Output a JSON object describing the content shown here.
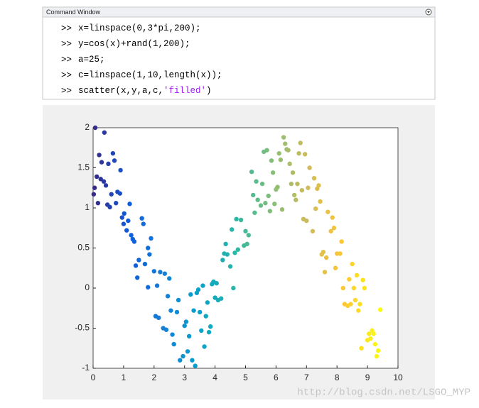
{
  "window": {
    "title": "Command Window",
    "prompt": ">>",
    "lines": [
      [
        "x=linspace(0,3*pi,200);"
      ],
      [
        "y=cos(x)+rand(1,200);"
      ],
      [
        "a=25;"
      ],
      [
        "c=linspace(1,10,length(x));"
      ],
      [
        "scatter(x,y,a,c,",
        "'filled'",
        ")"
      ]
    ]
  },
  "chart_data": {
    "type": "scatter",
    "x": [
      0.02,
      0.05,
      0.07,
      0.12,
      0.16,
      0.2,
      0.25,
      0.28,
      0.35,
      0.37,
      0.42,
      0.47,
      0.5,
      0.55,
      0.6,
      0.65,
      0.7,
      0.75,
      0.8,
      0.88,
      0.9,
      0.95,
      1.0,
      1.02,
      1.1,
      1.15,
      1.2,
      1.25,
      1.3,
      1.35,
      1.4,
      1.45,
      1.5,
      1.6,
      1.65,
      1.7,
      1.8,
      1.8,
      1.85,
      1.9,
      2.0,
      2.05,
      2.1,
      2.15,
      2.2,
      2.3,
      2.35,
      2.4,
      2.45,
      2.5,
      2.55,
      2.6,
      2.65,
      2.75,
      2.8,
      2.85,
      2.95,
      3.0,
      3.05,
      3.1,
      3.15,
      3.2,
      3.25,
      3.3,
      3.35,
      3.4,
      3.45,
      3.5,
      3.55,
      3.6,
      3.65,
      3.7,
      3.75,
      3.8,
      3.85,
      3.9,
      3.95,
      4.0,
      4.05,
      4.1,
      4.2,
      4.25,
      4.3,
      4.35,
      4.4,
      4.5,
      4.55,
      4.6,
      4.65,
      4.7,
      4.75,
      4.85,
      4.95,
      5.0,
      5.05,
      5.1,
      5.2,
      5.25,
      5.3,
      5.35,
      5.4,
      5.5,
      5.55,
      5.6,
      5.65,
      5.7,
      5.75,
      5.8,
      5.85,
      5.9,
      5.95,
      6.0,
      6.05,
      6.1,
      6.15,
      6.2,
      6.25,
      6.3,
      6.35,
      6.4,
      6.45,
      6.5,
      6.55,
      6.6,
      6.65,
      6.7,
      6.75,
      6.8,
      6.85,
      6.9,
      6.95,
      7.0,
      7.05,
      7.1,
      7.2,
      7.25,
      7.3,
      7.35,
      7.4,
      7.45,
      7.5,
      7.55,
      7.6,
      7.65,
      7.7,
      7.8,
      7.85,
      7.9,
      7.95,
      8.0,
      8.1,
      8.15,
      8.2,
      8.25,
      8.35,
      8.4,
      8.45,
      8.5,
      8.55,
      8.6,
      8.65,
      8.7,
      8.75,
      8.8,
      8.85,
      8.9,
      9.0,
      9.05,
      9.1,
      9.15,
      9.2,
      9.25,
      9.3,
      9.35,
      9.42
    ],
    "y": [
      1.17,
      1.25,
      2.0,
      1.39,
      1.06,
      1.66,
      1.36,
      1.57,
      1.33,
      1.94,
      1.28,
      1.04,
      1.55,
      1.01,
      1.17,
      1.68,
      1.59,
      1.06,
      1.2,
      1.18,
      1.47,
      0.88,
      0.8,
      0.93,
      0.72,
      0.84,
      1.05,
      0.66,
      0.61,
      0.58,
      0.28,
      0.13,
      0.35,
      0.87,
      0.8,
      0.3,
      0.5,
      0.01,
      0.42,
      0.62,
      0.21,
      -0.35,
      0.03,
      -0.37,
      0.2,
      -0.5,
      0.18,
      -0.52,
      -0.1,
      0.12,
      -0.28,
      -0.58,
      -0.7,
      -0.3,
      -0.15,
      -0.9,
      -0.85,
      -0.47,
      -0.42,
      -0.79,
      -0.6,
      -0.08,
      -0.9,
      -0.28,
      -0.97,
      -0.06,
      -0.02,
      -0.3,
      -0.53,
      0.03,
      -0.73,
      -0.35,
      -0.18,
      -0.55,
      -0.48,
      0.05,
      0.08,
      -0.12,
      0.06,
      -0.15,
      -0.13,
      0.35,
      0.43,
      0.55,
      0.42,
      0.27,
      0.73,
      0.0,
      0.44,
      0.86,
      0.48,
      0.85,
      0.53,
      0.71,
      0.55,
      0.66,
      1.45,
      1.16,
      0.94,
      1.33,
      1.1,
      1.03,
      1.3,
      1.7,
      1.06,
      1.72,
      1.15,
      0.96,
      1.59,
      1.44,
      1.05,
      1.23,
      1.26,
      1.68,
      1.6,
      0.98,
      1.88,
      1.8,
      1.73,
      1.72,
      1.55,
      1.3,
      1.44,
      1.16,
      1.1,
      1.3,
      1.68,
      1.81,
      1.22,
      0.86,
      1.67,
      0.84,
      1.25,
      1.5,
      0.71,
      1.37,
      0.99,
      1.24,
      1.28,
      1.08,
      0.42,
      0.45,
      0.2,
      0.38,
      0.95,
      0.71,
      0.88,
      0.75,
      0.25,
      0.43,
      0.43,
      0.58,
      0.0,
      -0.2,
      -0.22,
      0.11,
      -0.2,
      0.3,
      0.0,
      -0.15,
      0.16,
      -0.28,
      -0.2,
      -0.75,
      0.1,
      0.0,
      -0.65,
      -0.57,
      -0.63,
      -0.53,
      -0.57,
      -0.7,
      -0.85,
      -0.78,
      -0.27
    ],
    "xlim": [
      0,
      10
    ],
    "ylim": [
      -1,
      2
    ],
    "xticks": [
      0,
      1,
      2,
      3,
      4,
      5,
      6,
      7,
      8,
      9,
      10
    ],
    "yticks": [
      -1,
      -0.5,
      0,
      0.5,
      1,
      1.5,
      2
    ],
    "colormap": [
      "#352a87",
      "#0f5cdd",
      "#1481d6",
      "#06a4ca",
      "#2eb7a4",
      "#87bf77",
      "#d1bb59",
      "#fec832",
      "#f9fb0e"
    ]
  },
  "watermark": "http://blog.csdn.net/LSGO_MYP"
}
